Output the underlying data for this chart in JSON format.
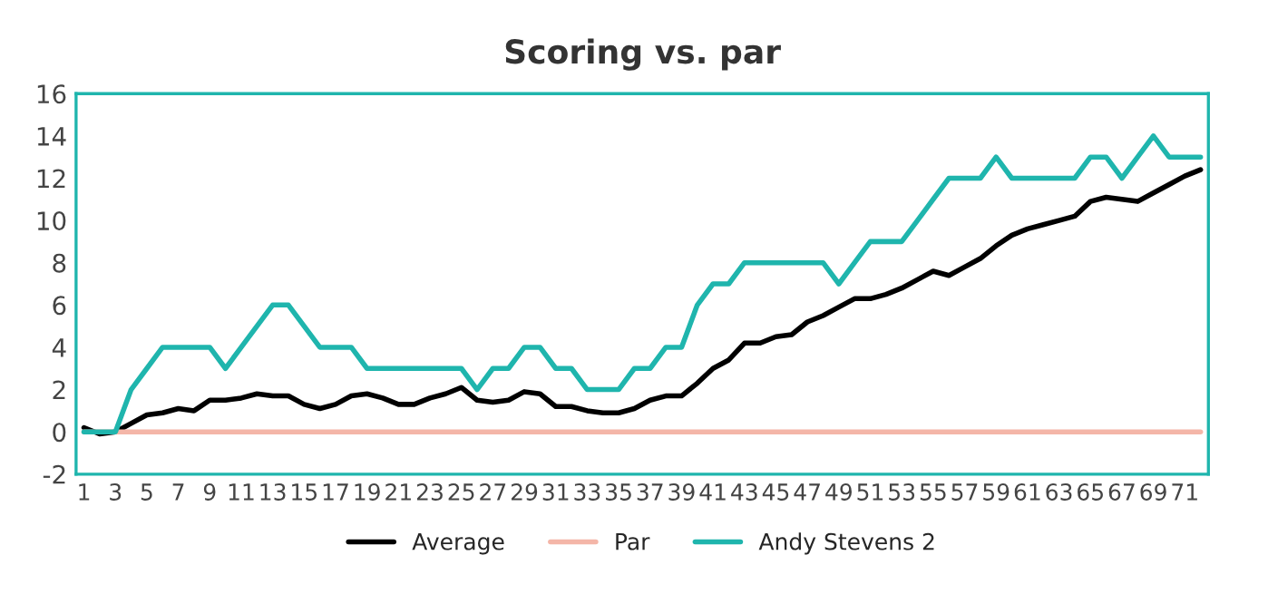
{
  "chart_data": {
    "type": "line",
    "title": "Scoring vs. par",
    "categories": [
      "1",
      null,
      "3",
      null,
      "5",
      null,
      "7",
      null,
      "9",
      null,
      "11",
      null,
      "13",
      null,
      "15",
      null,
      "17",
      null,
      "19",
      null,
      "21",
      null,
      "23",
      null,
      "25",
      null,
      "27",
      null,
      "29",
      null,
      "31",
      null,
      "33",
      null,
      "35",
      null,
      "37",
      null,
      "39",
      null,
      "41",
      null,
      "43",
      null,
      "45",
      null,
      "47",
      null,
      "49",
      null,
      "51",
      null,
      "53",
      null,
      "55",
      null,
      "57",
      null,
      "59",
      null,
      "61",
      null,
      "63",
      null,
      "65",
      null,
      "67",
      null,
      "69",
      null,
      "71",
      null
    ],
    "series": [
      {
        "name": "Average",
        "color": "#000000",
        "values": [
          0.2,
          -0.1,
          0,
          0.4,
          0.8,
          0.9,
          1.1,
          1.0,
          1.5,
          1.5,
          1.6,
          1.8,
          1.7,
          1.7,
          1.3,
          1.1,
          1.3,
          1.7,
          1.8,
          1.6,
          1.3,
          1.3,
          1.6,
          1.8,
          2.1,
          1.5,
          1.4,
          1.5,
          1.9,
          1.8,
          1.2,
          1.2,
          1.0,
          0.9,
          0.9,
          1.1,
          1.5,
          1.7,
          1.7,
          2.3,
          3.0,
          3.4,
          4.2,
          4.2,
          4.5,
          4.6,
          5.2,
          5.5,
          5.9,
          6.3,
          6.3,
          6.5,
          6.8,
          7.2,
          7.6,
          7.4,
          7.8,
          8.2,
          8.8,
          9.3,
          9.6,
          9.8,
          10.0,
          10.2,
          10.9,
          11.1,
          11.0,
          10.9,
          11.3,
          11.7,
          12.1,
          12.4
        ]
      },
      {
        "name": "Par",
        "color": "#f4b6a8",
        "values": [
          0,
          0,
          0,
          0,
          0,
          0,
          0,
          0,
          0,
          0,
          0,
          0,
          0,
          0,
          0,
          0,
          0,
          0,
          0,
          0,
          0,
          0,
          0,
          0,
          0,
          0,
          0,
          0,
          0,
          0,
          0,
          0,
          0,
          0,
          0,
          0,
          0,
          0,
          0,
          0,
          0,
          0,
          0,
          0,
          0,
          0,
          0,
          0,
          0,
          0,
          0,
          0,
          0,
          0,
          0,
          0,
          0,
          0,
          0,
          0,
          0,
          0,
          0,
          0,
          0,
          0,
          0,
          0,
          0,
          0,
          0,
          0
        ]
      },
      {
        "name": "Andy Stevens 2",
        "color": "#1fb5ad",
        "values": [
          0,
          0,
          0,
          2,
          3,
          4,
          4,
          4,
          4,
          3,
          4,
          5,
          6,
          6,
          5,
          4,
          4,
          4,
          3,
          3,
          3,
          3,
          3,
          3,
          3,
          2,
          3,
          3,
          4,
          4,
          3,
          3,
          2,
          2,
          2,
          3,
          3,
          4,
          4,
          6,
          7,
          7,
          8,
          8,
          8,
          8,
          8,
          8,
          7,
          8,
          9,
          9,
          9,
          10,
          11,
          12,
          12,
          12,
          13,
          12,
          12,
          12,
          12,
          12,
          13,
          13,
          12,
          13,
          14,
          13,
          13,
          13
        ]
      }
    ],
    "ylim": [
      -2,
      16
    ],
    "yticks": [
      -2,
      0,
      2,
      4,
      6,
      8,
      10,
      12,
      14,
      16
    ],
    "grid": false,
    "legend": "bottom",
    "marker": "none",
    "line_style": "solid"
  }
}
